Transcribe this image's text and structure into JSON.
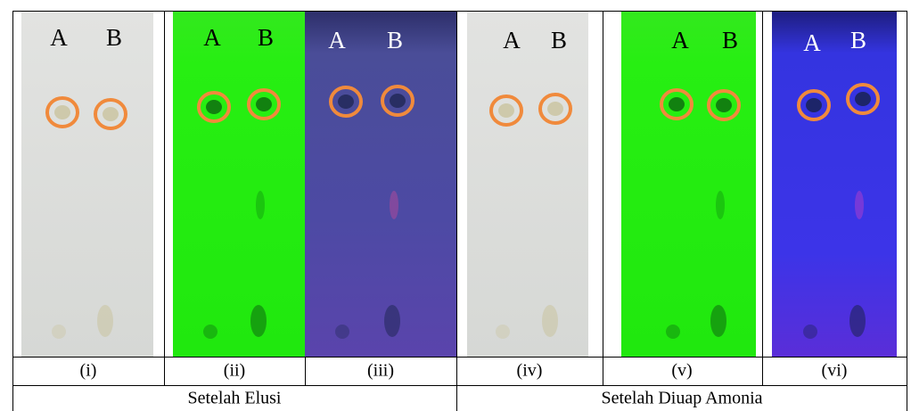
{
  "plates": [
    {
      "labels": [
        "A",
        "B"
      ],
      "caption": "(i)"
    },
    {
      "labels": [
        "A",
        "B"
      ],
      "caption": "(ii)"
    },
    {
      "labels": [
        "A",
        "B"
      ],
      "caption": "(iii)"
    },
    {
      "labels": [
        "A",
        "B"
      ],
      "caption": "(iv)"
    },
    {
      "labels": [
        "A",
        "B"
      ],
      "caption": "(v)"
    },
    {
      "labels": [
        "A",
        "B"
      ],
      "caption": "(vi)"
    }
  ],
  "groups": [
    "Setelah Elusi",
    "Setelah Diuap Amonia"
  ]
}
